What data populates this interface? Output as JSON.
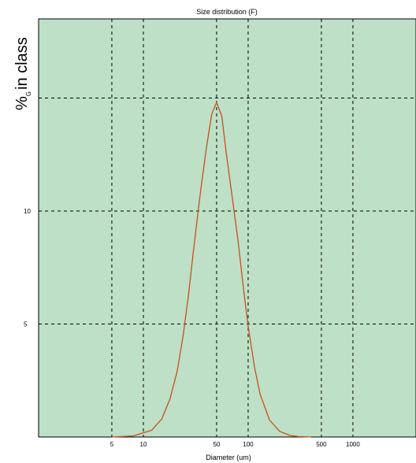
{
  "chart_data": {
    "type": "line",
    "title": "Size distribution (F)",
    "ylabel": "%",
    "ylabel_subscript": "G",
    "ylabel_suffix": "in class",
    "xlabel": "Diameter (um)",
    "x_scale": "log",
    "xlim": [
      1,
      4000
    ],
    "ylim": [
      0,
      18.5
    ],
    "x_ticks": [
      5,
      10,
      50,
      100,
      500,
      1000
    ],
    "x_tick_labels": [
      "5",
      "10",
      "50",
      "100",
      "500",
      "1000"
    ],
    "x_gridlines": [
      5,
      10,
      50,
      100,
      500,
      1000
    ],
    "y_ticks": [
      5,
      10
    ],
    "y_tick_labels": [
      "5",
      "10"
    ],
    "y_gridlines": [
      5,
      10,
      15
    ],
    "grid": true,
    "background": "#bde0c6",
    "line_color": "#c8501e",
    "series": [
      {
        "x": [
          5,
          8,
          12,
          15,
          18,
          21,
          24,
          27,
          30,
          35,
          40,
          45,
          50,
          56,
          62,
          70,
          80,
          90,
          100,
          115,
          130,
          160,
          200,
          250,
          300,
          350,
          400
        ],
        "y": [
          0,
          0.05,
          0.3,
          0.8,
          1.7,
          2.9,
          4.5,
          6.3,
          8.2,
          10.8,
          12.8,
          14.3,
          14.8,
          14.2,
          12.5,
          10.7,
          8.7,
          6.6,
          4.9,
          3.1,
          1.9,
          0.75,
          0.25,
          0.07,
          0.02,
          0.01,
          0
        ]
      }
    ]
  }
}
